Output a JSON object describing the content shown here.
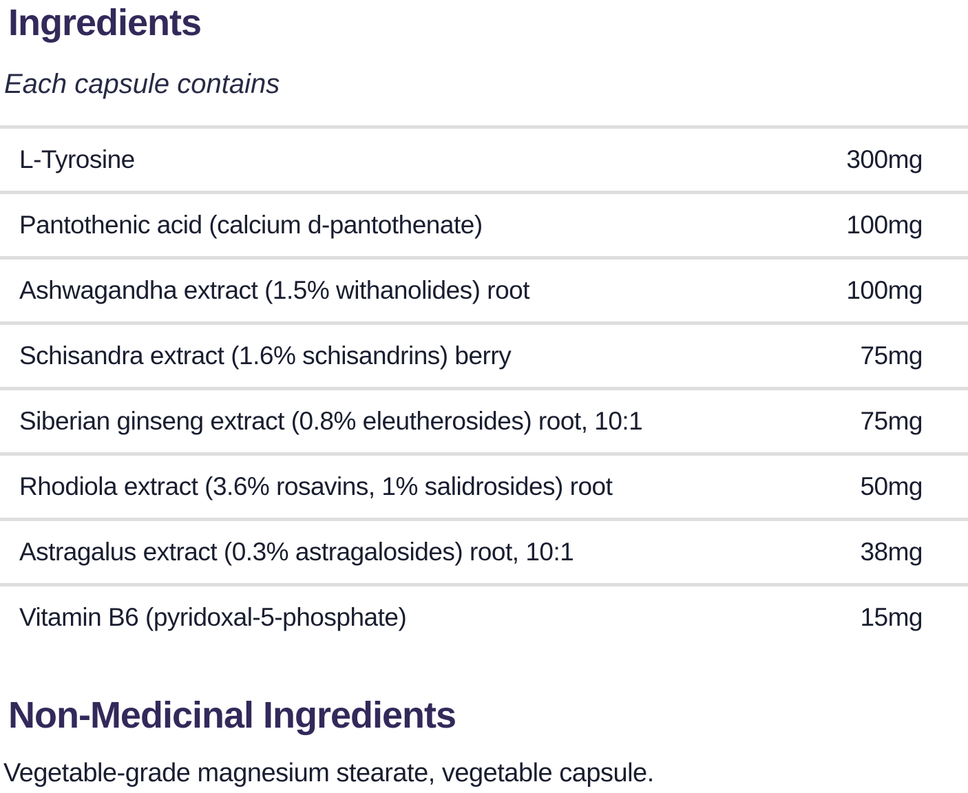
{
  "colors": {
    "heading": "#33295a",
    "body_text": "#191d2f",
    "divider": "#dedede",
    "background": "#ffffff"
  },
  "ingredients_section": {
    "title": "Ingredients",
    "subtitle": "Each capsule contains",
    "rows": [
      {
        "name": "L-Tyrosine",
        "amount": "300mg"
      },
      {
        "name": "Pantothenic acid (calcium d-pantothenate)",
        "amount": "100mg"
      },
      {
        "name": "Ashwagandha extract (1.5% withanolides) root",
        "amount": "100mg"
      },
      {
        "name": "Schisandra extract (1.6% schisandrins) berry",
        "amount": "75mg"
      },
      {
        "name": "Siberian ginseng extract (0.8% eleutherosides) root, 10:1",
        "amount": "75mg"
      },
      {
        "name": "Rhodiola extract (3.6% rosavins, 1% salidrosides) root",
        "amount": "50mg"
      },
      {
        "name": "Astragalus extract (0.3% astragalosides) root, 10:1",
        "amount": "38mg"
      },
      {
        "name": "Vitamin B6 (pyridoxal-5-phosphate)",
        "amount": "15mg"
      }
    ]
  },
  "non_medicinal_section": {
    "title": "Non-Medicinal Ingredients",
    "text": "Vegetable-grade magnesium stearate, vegetable capsule."
  }
}
